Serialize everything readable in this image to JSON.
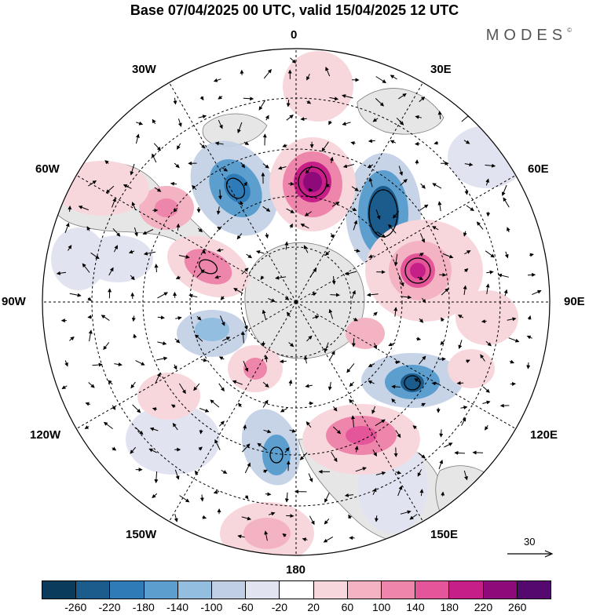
{
  "title": "Base 07/04/2025 00 UTC, valid 15/04/2025 12 UTC",
  "brand": "MODES",
  "brand_mark": "©",
  "map": {
    "projection": "south polar stereographic",
    "longitude_labels": [
      "0",
      "30E",
      "60E",
      "90E",
      "120E",
      "150E",
      "180",
      "150W",
      "120W",
      "90W",
      "60W",
      "30W"
    ],
    "reference_vector": {
      "value": "30"
    }
  },
  "colorbar": {
    "colors": [
      "#0b3b5c",
      "#1b5c8d",
      "#2e7bb8",
      "#5c9fcf",
      "#93bedf",
      "#c1cfe5",
      "#e2e3f0",
      "#ffffff",
      "#f8d7dc",
      "#f3b3c2",
      "#ee86ab",
      "#e45599",
      "#c61f87",
      "#8e0a7b",
      "#55096f"
    ],
    "tick_labels": [
      "-260",
      "-220",
      "-180",
      "-140",
      "-100",
      "-60",
      "-20",
      "20",
      "60",
      "100",
      "140",
      "180",
      "220",
      "260"
    ]
  }
}
